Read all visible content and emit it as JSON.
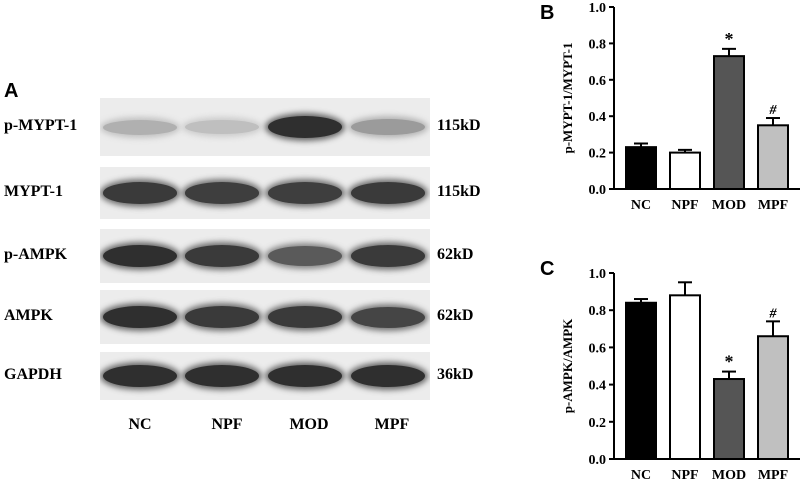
{
  "panel_a": {
    "letter": "A",
    "rows": [
      {
        "label": "p-MYPT-1",
        "size": "115kD",
        "intensities": [
          0.25,
          0.18,
          0.85,
          0.35
        ]
      },
      {
        "label": "MYPT-1",
        "size": "115kD",
        "intensities": [
          0.8,
          0.78,
          0.78,
          0.8
        ]
      },
      {
        "label": "p-AMPK",
        "size": "62kD",
        "intensities": [
          0.85,
          0.8,
          0.65,
          0.8
        ]
      },
      {
        "label": "AMPK",
        "size": "62kD",
        "intensities": [
          0.85,
          0.8,
          0.8,
          0.75
        ]
      },
      {
        "label": "GAPDH",
        "size": "36kD",
        "intensities": [
          0.85,
          0.85,
          0.85,
          0.85
        ]
      }
    ],
    "groups": [
      "NC",
      "NPF",
      "MOD",
      "MPF"
    ]
  },
  "chart_data": [
    {
      "panel": "B",
      "type": "bar",
      "ylabel": "p-MYPT-1/MYPT-1",
      "ylim": [
        0,
        1.0
      ],
      "yticks": [
        "0.0",
        "0.2",
        "0.4",
        "0.6",
        "0.8",
        "1.0"
      ],
      "categories": [
        "NC",
        "NPF",
        "MOD",
        "MPF"
      ],
      "values": [
        0.23,
        0.2,
        0.73,
        0.35
      ],
      "errors": [
        0.02,
        0.015,
        0.04,
        0.04
      ],
      "annotations": [
        "",
        "",
        "*",
        "#"
      ],
      "colors": [
        "#000000",
        "#ffffff",
        "#555555",
        "#c0c0c0"
      ]
    },
    {
      "panel": "C",
      "type": "bar",
      "ylabel": "p-AMPK/AMPK",
      "ylim": [
        0,
        1.0
      ],
      "yticks": [
        "0.0",
        "0.2",
        "0.4",
        "0.6",
        "0.8",
        "1.0"
      ],
      "categories": [
        "NC",
        "NPF",
        "MOD",
        "MPF"
      ],
      "values": [
        0.84,
        0.88,
        0.43,
        0.66
      ],
      "errors": [
        0.02,
        0.07,
        0.04,
        0.08
      ],
      "annotations": [
        "",
        "",
        "*",
        "#"
      ],
      "colors": [
        "#000000",
        "#ffffff",
        "#555555",
        "#c0c0c0"
      ]
    }
  ]
}
